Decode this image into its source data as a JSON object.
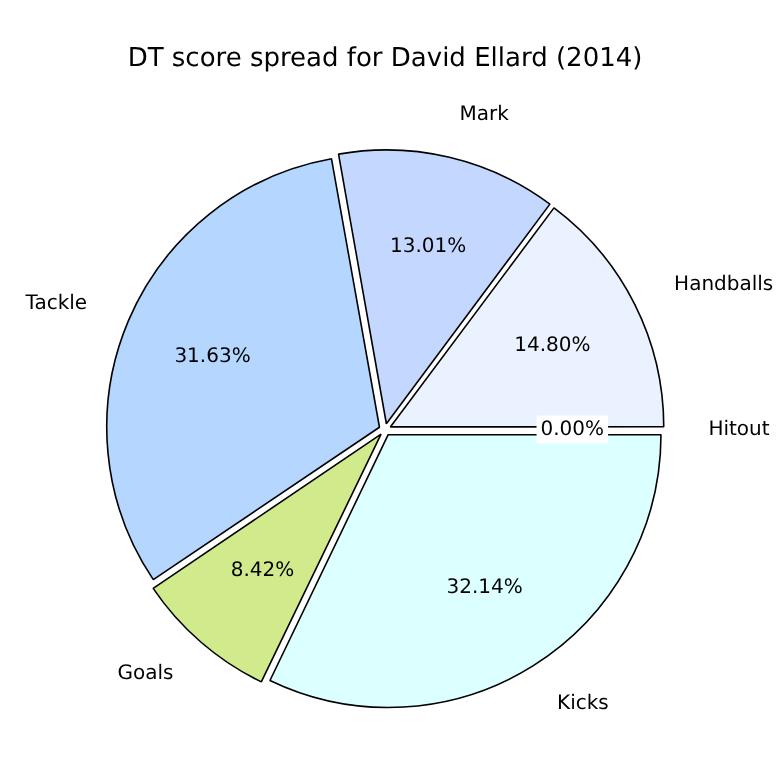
{
  "chart_data": {
    "type": "pie",
    "title": "DT score spread for David Ellard (2014)",
    "categories": [
      "Kicks",
      "Goals",
      "Tackle",
      "Mark",
      "Handballs",
      "Hitout"
    ],
    "values": [
      32.14,
      8.42,
      31.63,
      13.01,
      14.8,
      0.0
    ],
    "value_labels": [
      "32.14%",
      "8.42%",
      "31.63%",
      "13.01%",
      "14.80%",
      "0.00%"
    ],
    "colors": [
      "#dcffff",
      "#d0ea8c",
      "#b4d6ff",
      "#c4d8ff",
      "#eaf1ff",
      "#ffffff"
    ],
    "legend": false
  }
}
